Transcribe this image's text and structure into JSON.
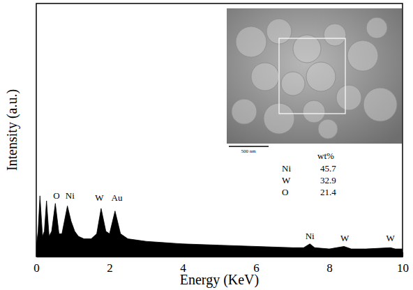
{
  "chart_data": {
    "type": "area",
    "x_label": "Energy (KeV)",
    "y_label": "Intensity (a.u.)",
    "x": [
      0.0,
      0.05,
      0.1,
      0.17,
      0.22,
      0.28,
      0.35,
      0.42,
      0.52,
      0.62,
      0.7,
      0.85,
      0.95,
      1.05,
      1.15,
      1.3,
      1.5,
      1.65,
      1.77,
      1.9,
      2.0,
      2.15,
      2.3,
      2.5,
      3.0,
      3.5,
      4.0,
      5.0,
      6.0,
      7.0,
      7.3,
      7.47,
      7.6,
      8.0,
      8.4,
      8.6,
      9.0,
      9.67,
      9.8,
      10.0
    ],
    "values": [
      4,
      10,
      24,
      8,
      10,
      22,
      8,
      10,
      21,
      9,
      9,
      20,
      14,
      10,
      8,
      7,
      7,
      9,
      19,
      10,
      9,
      18,
      9,
      7,
      6,
      5.5,
      5,
      4.5,
      4,
      3.5,
      3.5,
      5,
      3.5,
      3,
      4,
      3,
      3,
      3.5,
      3,
      3
    ],
    "color": "#000000",
    "xlim": [
      0,
      10
    ],
    "xticks": [
      0,
      2,
      4,
      6,
      8,
      10
    ],
    "ylim": [
      0,
      100
    ],
    "yticks": [],
    "tick_labels": "x",
    "annotations": [
      {
        "text": "O",
        "x": 0.55,
        "y": 23
      },
      {
        "text": "Ni",
        "x": 0.92,
        "y": 23
      },
      {
        "text": "W",
        "x": 1.72,
        "y": 22
      },
      {
        "text": "Au",
        "x": 2.2,
        "y": 22
      },
      {
        "text": "Ni",
        "x": 7.47,
        "y": 7
      },
      {
        "text": "W",
        "x": 8.42,
        "y": 6
      },
      {
        "text": "W",
        "x": 9.67,
        "y": 6
      }
    ],
    "inset_scale_label": "500 nm",
    "composition": {
      "header": "wt%",
      "rows": [
        {
          "element": "Ni",
          "value": 45.7
        },
        {
          "element": "W",
          "value": 32.9
        },
        {
          "element": "O",
          "value": 21.4
        }
      ]
    }
  }
}
